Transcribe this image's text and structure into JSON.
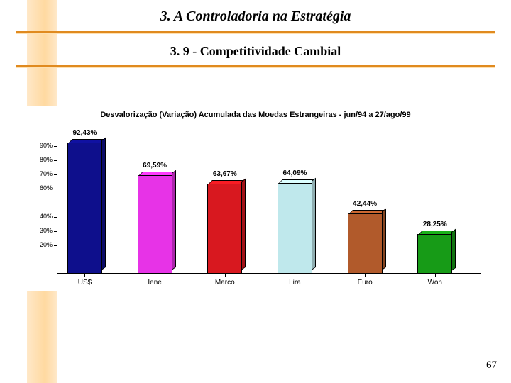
{
  "background_color": "#ffffff",
  "accent_line_color": "#e08a1f",
  "left_band_gradient": [
    "#ffe8c8",
    "#ffd9a0",
    "#ffe8c8"
  ],
  "title": {
    "text": "3.  A Controladoria na Estratégia",
    "fontsize": 20,
    "color": "#000000"
  },
  "subtitle": {
    "text": "3. 9 - Competitividade Cambial",
    "fontsize": 18,
    "color": "#000000"
  },
  "chart": {
    "type": "bar",
    "title": "Desvalorização (Variação) Acumulada das Moedas Estrangeiras - jun/94 a 27/ago/99",
    "title_fontsize": 11,
    "title_color": "#000000",
    "categories": [
      "US$",
      "Iene",
      "Marco",
      "Lira",
      "Euro",
      "Won"
    ],
    "values": [
      92.43,
      69.59,
      63.67,
      64.09,
      42.44,
      28.25
    ],
    "value_labels": [
      "92,43%",
      "69,59%",
      "63,67%",
      "64,09%",
      "42,44%",
      "28,25%"
    ],
    "bar_colors": [
      "#0e0f8c",
      "#e733e7",
      "#d8181f",
      "#bfe8ec",
      "#b15a2b",
      "#179b17"
    ],
    "bar_width_pct": 8.2,
    "bar_gap_pct": 16.5,
    "first_bar_left_pct": 2.5,
    "yaxis": {
      "min": 0,
      "max": 100,
      "ticks": [
        20,
        30,
        40,
        60,
        70,
        80,
        90
      ],
      "tick_labels": [
        "20%",
        "30%",
        "40%",
        "60%",
        "70%",
        "80%",
        "90%"
      ],
      "label_fontsize": 9,
      "label_color": "#000000"
    },
    "value_label_fontsize": 10,
    "value_label_color": "#000000",
    "xcat_fontsize": 10,
    "xcat_color": "#000000",
    "axis_color": "#000000"
  },
  "page_number": "67",
  "page_number_fontsize": 15,
  "page_number_color": "#000000"
}
